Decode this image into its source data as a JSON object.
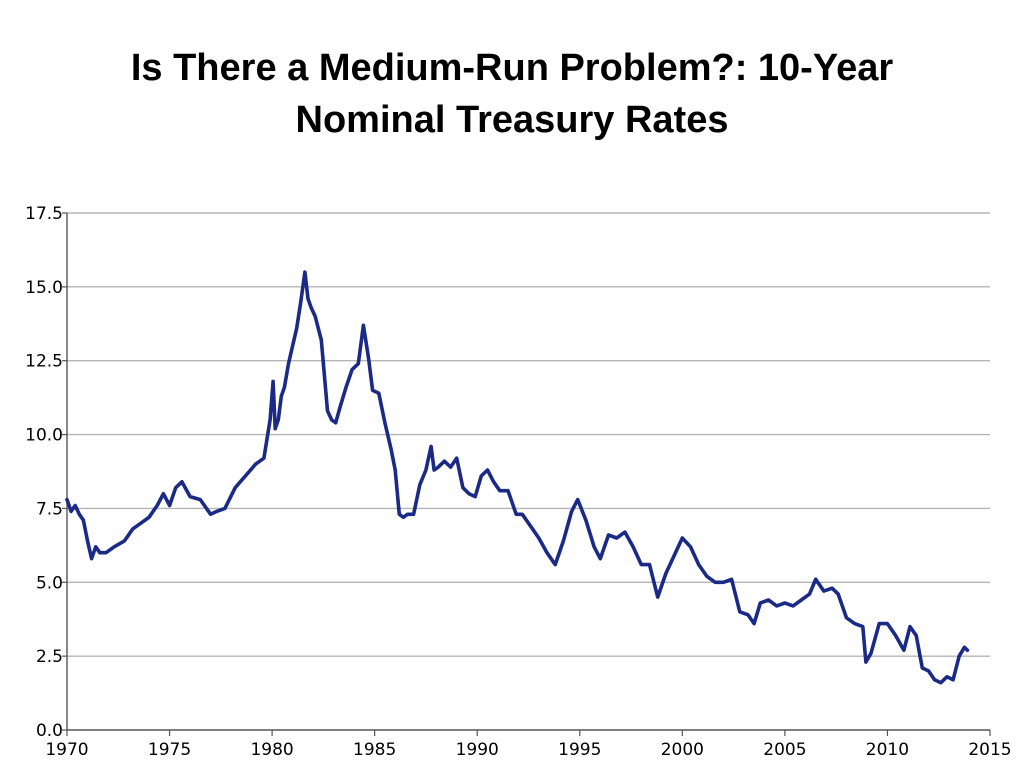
{
  "slide": {
    "title_line1": "Is There a Medium-Run Problem?: 10-Year",
    "title_line2": "Nominal Treasury Rates"
  },
  "chart_data": {
    "type": "line",
    "title": "Is There a Medium-Run Problem?: 10-Year Nominal Treasury Rates",
    "xlabel": "",
    "ylabel": "",
    "xlim": [
      1970,
      2015
    ],
    "ylim": [
      0,
      17.5
    ],
    "xticks": [
      1970,
      1975,
      1980,
      1985,
      1990,
      1995,
      2000,
      2005,
      2010,
      2015
    ],
    "xtick_labels": [
      "1970",
      "1975",
      "1980",
      "1985",
      "1990",
      "1995",
      "2000",
      "2005",
      "2010",
      "2015"
    ],
    "yticks": [
      0,
      2.5,
      5,
      7.5,
      10,
      12.5,
      15,
      17.5
    ],
    "ytick_labels": [
      "0.0",
      "2.5",
      "5.0",
      "7.5",
      "10.0",
      "12.5",
      "15.0",
      "17.5"
    ],
    "grid": "horizontal",
    "line_color": "#1a2a86",
    "series": [
      {
        "x": [
          1970.0,
          1970.2,
          1970.4,
          1970.6,
          1970.8,
          1971.0,
          1971.2,
          1971.4,
          1971.6,
          1971.9,
          1972.3,
          1972.8,
          1973.2,
          1973.6,
          1974.0,
          1974.4,
          1974.7,
          1975.0,
          1975.3,
          1975.6,
          1976.0,
          1976.5,
          1977.0,
          1977.3,
          1977.7,
          1978.2,
          1978.7,
          1979.2,
          1979.6,
          1979.9,
          1980.05,
          1980.15,
          1980.3,
          1980.45,
          1980.6,
          1980.8,
          1981.0,
          1981.2,
          1981.4,
          1981.6,
          1981.75,
          1981.9,
          1982.1,
          1982.4,
          1982.7,
          1982.9,
          1983.1,
          1983.3,
          1983.6,
          1983.9,
          1984.2,
          1984.45,
          1984.7,
          1984.9,
          1985.2,
          1985.5,
          1985.8,
          1986.0,
          1986.2,
          1986.4,
          1986.6,
          1986.9,
          1987.2,
          1987.5,
          1987.75,
          1987.9,
          1988.1,
          1988.4,
          1988.7,
          1989.0,
          1989.3,
          1989.6,
          1989.9,
          1990.2,
          1990.5,
          1990.8,
          1991.1,
          1991.5,
          1991.9,
          1992.2,
          1992.6,
          1993.0,
          1993.4,
          1993.8,
          1994.2,
          1994.6,
          1994.9,
          1995.3,
          1995.7,
          1996.0,
          1996.4,
          1996.8,
          1997.2,
          1997.6,
          1998.0,
          1998.4,
          1998.8,
          1999.2,
          1999.6,
          2000.0,
          2000.4,
          2000.8,
          2001.2,
          2001.6,
          2002.0,
          2002.4,
          2002.8,
          2003.2,
          2003.5,
          2003.8,
          2004.2,
          2004.6,
          2005.0,
          2005.4,
          2005.8,
          2006.2,
          2006.5,
          2006.9,
          2007.3,
          2007.6,
          2008.0,
          2008.4,
          2008.8,
          2008.95,
          2009.2,
          2009.6,
          2010.0,
          2010.4,
          2010.8,
          2011.1,
          2011.4,
          2011.7,
          2012.0,
          2012.3,
          2012.6,
          2012.9,
          2013.2,
          2013.5,
          2013.75,
          2013.9
        ],
        "y": [
          7.8,
          7.4,
          7.6,
          7.3,
          7.1,
          6.4,
          5.8,
          6.2,
          6.0,
          6.0,
          6.2,
          6.4,
          6.8,
          7.0,
          7.2,
          7.6,
          8.0,
          7.6,
          8.2,
          8.4,
          7.9,
          7.8,
          7.3,
          7.4,
          7.5,
          8.2,
          8.6,
          9.0,
          9.2,
          10.5,
          11.8,
          10.2,
          10.5,
          11.3,
          11.6,
          12.4,
          13.0,
          13.6,
          14.5,
          15.5,
          14.6,
          14.3,
          14.0,
          13.2,
          10.8,
          10.5,
          10.4,
          10.9,
          11.6,
          12.2,
          12.4,
          13.7,
          12.6,
          11.5,
          11.4,
          10.4,
          9.5,
          8.8,
          7.3,
          7.2,
          7.3,
          7.3,
          8.3,
          8.8,
          9.6,
          8.8,
          8.9,
          9.1,
          8.9,
          9.2,
          8.2,
          8.0,
          7.9,
          8.6,
          8.8,
          8.4,
          8.1,
          8.1,
          7.3,
          7.3,
          6.9,
          6.5,
          6.0,
          5.6,
          6.4,
          7.4,
          7.8,
          7.1,
          6.2,
          5.8,
          6.6,
          6.5,
          6.7,
          6.2,
          5.6,
          5.6,
          4.5,
          5.3,
          5.9,
          6.5,
          6.2,
          5.6,
          5.2,
          5.0,
          5.0,
          5.1,
          4.0,
          3.9,
          3.6,
          4.3,
          4.4,
          4.2,
          4.3,
          4.2,
          4.4,
          4.6,
          5.1,
          4.7,
          4.8,
          4.6,
          3.8,
          3.6,
          3.5,
          2.3,
          2.6,
          3.6,
          3.6,
          3.2,
          2.7,
          3.5,
          3.2,
          2.1,
          2.0,
          1.7,
          1.6,
          1.8,
          1.7,
          2.5,
          2.8,
          2.7
        ]
      }
    ]
  }
}
